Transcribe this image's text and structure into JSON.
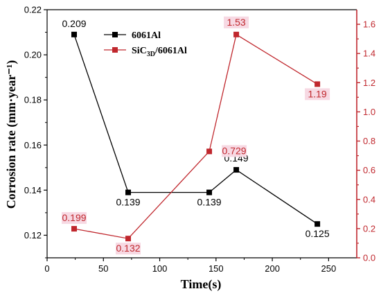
{
  "chart_data": {
    "type": "line",
    "xlabel": "Time(s)",
    "ylabel": "Corrosion rate (mm·year⁻¹)",
    "xlim": [
      0,
      275
    ],
    "ylim_left": [
      0.11,
      0.22
    ],
    "ylim_right": [
      0,
      1.7
    ],
    "x_ticks": [
      "0",
      "50",
      "100",
      "150",
      "200",
      "250"
    ],
    "y_left_ticks": [
      "0.12",
      "0.14",
      "0.16",
      "0.18",
      "0.20",
      "0.22"
    ],
    "y_right_ticks": [
      "0.0",
      "0.2",
      "0.4",
      "0.6",
      "0.8",
      "1.0",
      "1.2",
      "1.4",
      "1.6"
    ],
    "legend_position": "top-center",
    "series": [
      {
        "name": "6061Al",
        "axis": "left",
        "color": "#000000",
        "x": [
          24,
          72,
          144,
          168,
          240
        ],
        "y": [
          0.209,
          0.139,
          0.139,
          0.149,
          0.125
        ],
        "labels": [
          "0.209",
          "0.139",
          "0.139",
          "0.149",
          "0.125"
        ]
      },
      {
        "name": "SiC3D/6061Al",
        "name_parts": {
          "base": "SiC",
          "sub": "3D",
          "tail": "/6061Al"
        },
        "axis": "right",
        "color": "#c0272d",
        "x": [
          24,
          72,
          144,
          168,
          240
        ],
        "y": [
          0.199,
          0.132,
          0.729,
          1.53,
          1.19
        ],
        "labels": [
          "0.199",
          "0.132",
          "0.729",
          "1.53",
          "1.19"
        ]
      }
    ]
  }
}
